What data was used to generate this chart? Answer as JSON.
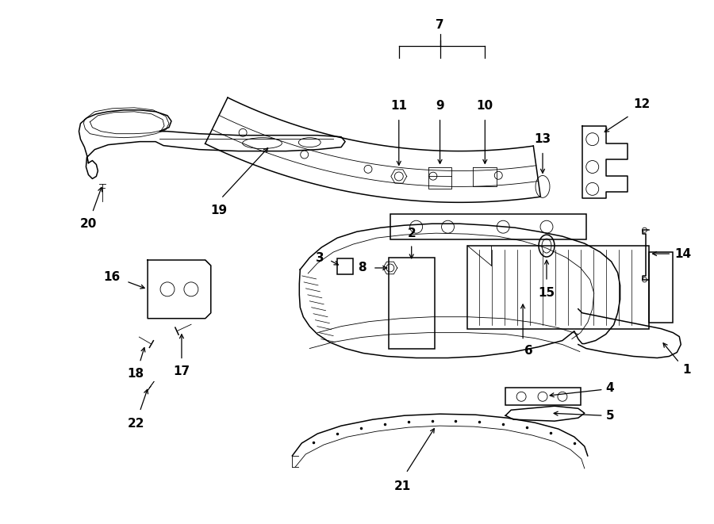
{
  "background_color": "#ffffff",
  "line_color": "#000000",
  "fig_width": 9.0,
  "fig_height": 6.61,
  "lw_main": 1.1,
  "lw_thin": 0.6,
  "lw_thick": 1.4
}
